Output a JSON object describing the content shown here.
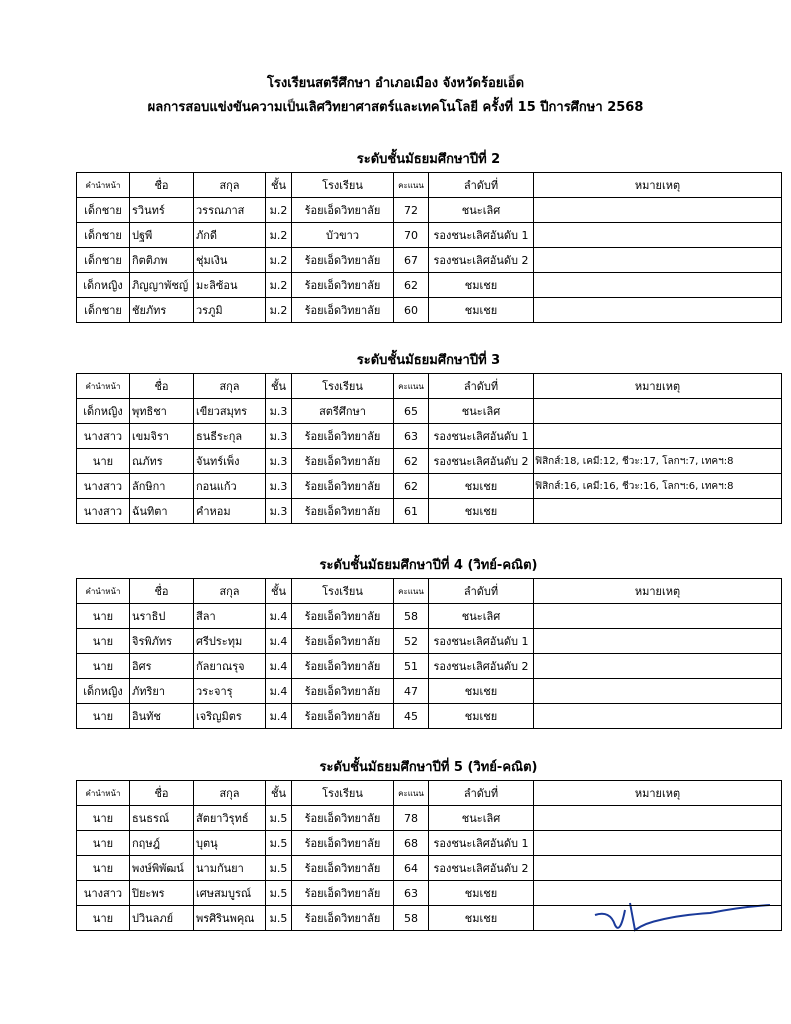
{
  "header": {
    "school": "โรงเรียนสตรีศึกษา  อำเภอเมือง  จังหวัดร้อยเอ็ด",
    "subtitle": "ผลการสอบแข่งขันความเป็นเลิศวิทยาศาสตร์และเทคโนโลยี ครั้งที่ 15 ปีการศึกษา 2568"
  },
  "columns": [
    "คำนำหน้า",
    "ชื่อ",
    "สกุล",
    "ชั้น",
    "โรงเรียน",
    "คะแนน",
    "ลำดับที่",
    "หมายเหตุ"
  ],
  "sections": [
    {
      "heading": "ระดับชั้นมัธยมศึกษาปีที่  2",
      "rows": [
        {
          "prefix": "เด็กชาย",
          "first": "รวินทร์",
          "last": "วรรณภาส",
          "grade": "ม.2",
          "school": "ร้อยเอ็ดวิทยาลัย",
          "score": 72,
          "rank": "ชนะเลิศ"
        },
        {
          "prefix": "เด็กชาย",
          "first": "ปฐพี",
          "last": "ภักดี",
          "grade": "ม.2",
          "school": "บัวขาว",
          "score": 70,
          "rank": "รองชนะเลิศอันดับ 1"
        },
        {
          "prefix": "เด็กชาย",
          "first": "กิตติภพ",
          "last": "ชุ่มเงิน",
          "grade": "ม.2",
          "school": "ร้อยเอ็ดวิทยาลัย",
          "score": 67,
          "rank": "รองชนะเลิศอันดับ 2"
        },
        {
          "prefix": "เด็กหญิง",
          "first": "ภิญญาพัชญ์",
          "last": "มะลิซ้อน",
          "grade": "ม.2",
          "school": "ร้อยเอ็ดวิทยาลัย",
          "score": 62,
          "rank": "ชมเชย"
        },
        {
          "prefix": "เด็กชาย",
          "first": "ชัยภัทร",
          "last": "วรภูมิ",
          "grade": "ม.2",
          "school": "ร้อยเอ็ดวิทยาลัย",
          "score": 60,
          "rank": "ชมเชย"
        }
      ]
    },
    {
      "heading": "ระดับชั้นมัธยมศึกษาปีที่  3",
      "rows": [
        {
          "prefix": "เด็กหญิง",
          "first": "พุทธิชา",
          "last": "เขียวสมุทร",
          "grade": "ม.3",
          "school": "สตรีศึกษา",
          "score": 65,
          "rank": "ชนะเลิศ"
        },
        {
          "prefix": "นางสาว",
          "first": "เขมจิรา",
          "last": "ธนธีระกุล",
          "grade": "ม.3",
          "school": "ร้อยเอ็ดวิทยาลัย",
          "score": 63,
          "rank": "รองชนะเลิศอันดับ 1"
        },
        {
          "prefix": "นาย",
          "first": "ณภัทร",
          "last": "จันทร์เพ็ง",
          "grade": "ม.3",
          "school": "ร้อยเอ็ดวิทยาลัย",
          "score": 62,
          "rank": "รองชนะเลิศอันดับ 2",
          "note": "ฟิสิกส์:18, เคมี:12, ชีวะ:17, โลกฯ:7, เทคฯ:8"
        },
        {
          "prefix": "นางสาว",
          "first": "ลักษิกา",
          "last": "กอนแก้ว",
          "grade": "ม.3",
          "school": "ร้อยเอ็ดวิทยาลัย",
          "score": 62,
          "rank": "ชมเชย",
          "note": "ฟิสิกส์:16, เคมี:16, ชีวะ:16, โลกฯ:6, เทคฯ:8"
        },
        {
          "prefix": "นางสาว",
          "first": "ฉันทิตา",
          "last": "คำหอม",
          "grade": "ม.3",
          "school": "ร้อยเอ็ดวิทยาลัย",
          "score": 61,
          "rank": "ชมเชย"
        }
      ]
    },
    {
      "heading": "ระดับชั้นมัธยมศึกษาปีที่ 4 (วิทย์-คณิต)",
      "rows": [
        {
          "prefix": "นาย",
          "first": "นราธิป",
          "last": "สีลา",
          "grade": "ม.4",
          "school": "ร้อยเอ็ดวิทยาลัย",
          "score": 58,
          "rank": "ชนะเลิศ"
        },
        {
          "prefix": "นาย",
          "first": "จิรพิภัทร",
          "last": "ศรีประทุม",
          "grade": "ม.4",
          "school": "ร้อยเอ็ดวิทยาลัย",
          "score": 52,
          "rank": "รองชนะเลิศอันดับ 1"
        },
        {
          "prefix": "นาย",
          "first": "อิศร",
          "last": "กัลยาณรุจ",
          "grade": "ม.4",
          "school": "ร้อยเอ็ดวิทยาลัย",
          "score": 51,
          "rank": "รองชนะเลิศอันดับ 2"
        },
        {
          "prefix": "เด็กหญิง",
          "first": "ภัทริยา",
          "last": "วระจารุ",
          "grade": "ม.4",
          "school": "ร้อยเอ็ดวิทยาลัย",
          "score": 47,
          "rank": "ชมเชย"
        },
        {
          "prefix": "นาย",
          "first": "อินทัช",
          "last": "เจริญมิตร",
          "grade": "ม.4",
          "school": "ร้อยเอ็ดวิทยาลัย",
          "score": 45,
          "rank": "ชมเชย"
        }
      ]
    },
    {
      "heading": "ระดับชั้นมัธยมศึกษาปีที่ 5 (วิทย์-คณิต)",
      "rows": [
        {
          "prefix": "นาย",
          "first": "ธนธรณ์",
          "last": "สัตยาวิรุทธ์",
          "grade": "ม.5",
          "school": "ร้อยเอ็ดวิทยาลัย",
          "score": 78,
          "rank": "ชนะเลิศ"
        },
        {
          "prefix": "นาย",
          "first": "กฤษฎ์",
          "last": "บุตนุ",
          "grade": "ม.5",
          "school": "ร้อยเอ็ดวิทยาลัย",
          "score": 68,
          "rank": "รองชนะเลิศอันดับ 1"
        },
        {
          "prefix": "นาย",
          "first": "พงษ์พิพัฒน์",
          "last": "นามกันยา",
          "grade": "ม.5",
          "school": "ร้อยเอ็ดวิทยาลัย",
          "score": 64,
          "rank": "รองชนะเลิศอันดับ 2"
        },
        {
          "prefix": "นางสาว",
          "first": "ปิยะพร",
          "last": "เศษสมบูรณ์",
          "grade": "ม.5",
          "school": "ร้อยเอ็ดวิทยาลัย",
          "score": 63,
          "rank": "ชมเชย"
        },
        {
          "prefix": "นาย",
          "first": "ปวินลภย์",
          "last": "พรศิรินพคุณ",
          "grade": "ม.5",
          "school": "ร้อยเอ็ดวิทยาลัย",
          "score": 58,
          "rank": "ชมเชย"
        }
      ]
    }
  ]
}
